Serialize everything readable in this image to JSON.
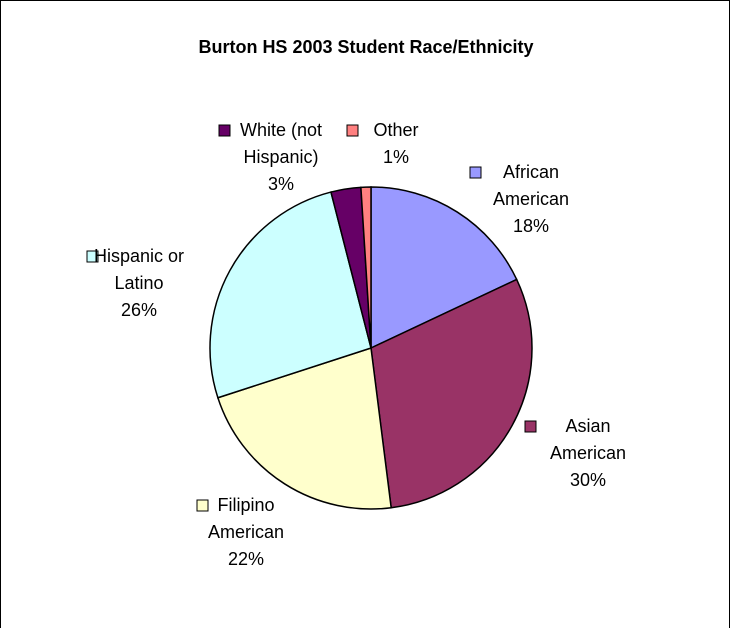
{
  "chart_data": {
    "type": "pie",
    "title": "Burton HS 2003 Student Race/Ethnicity",
    "slices": [
      {
        "label_lines": [
          "African",
          "American"
        ],
        "value": 18,
        "value_label": "18%",
        "color": "#9999FF"
      },
      {
        "label_lines": [
          "Asian",
          "American"
        ],
        "value": 30,
        "value_label": "30%",
        "color": "#993366"
      },
      {
        "label_lines": [
          "Filipino",
          "American"
        ],
        "value": 22,
        "value_label": "22%",
        "color": "#FFFFCC"
      },
      {
        "label_lines": [
          "Hispanic or",
          "Latino"
        ],
        "value": 26,
        "value_label": "26%",
        "color": "#CCFFFF"
      },
      {
        "label_lines": [
          "White (not",
          "Hispanic)"
        ],
        "value": 3,
        "value_label": "3%",
        "color": "#660066"
      },
      {
        "label_lines": [
          "Other"
        ],
        "value": 1,
        "value_label": "1%",
        "color": "#FF8080"
      }
    ]
  }
}
